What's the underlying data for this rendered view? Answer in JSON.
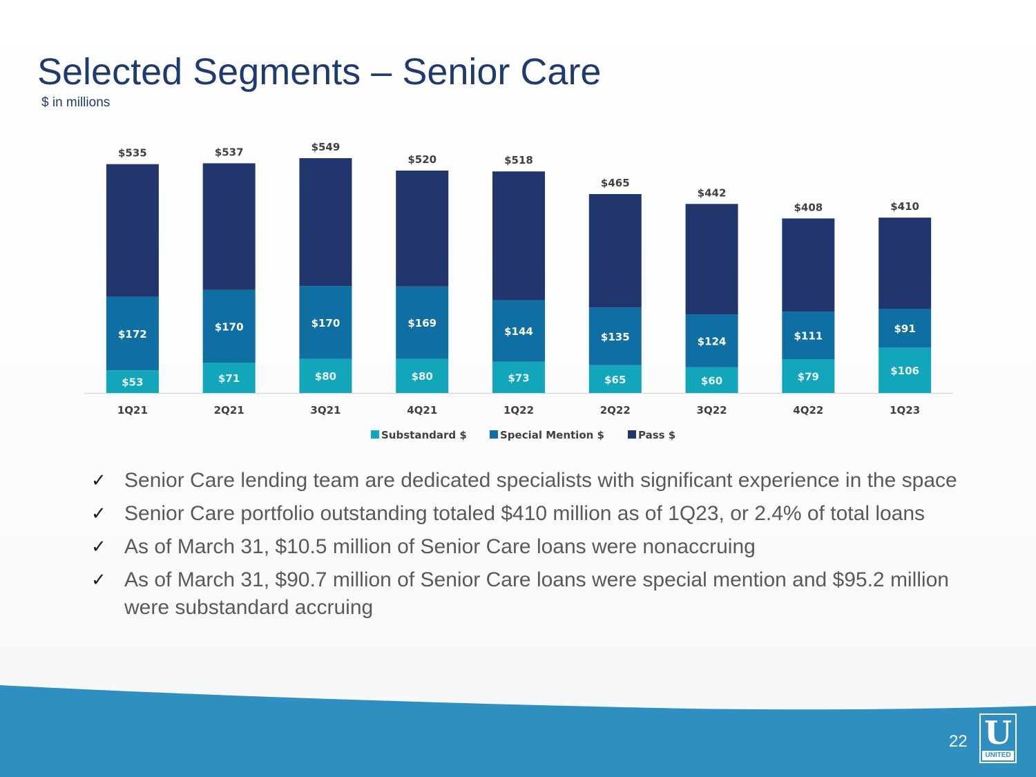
{
  "slide": {
    "title": "Selected Segments – Senior Care",
    "subtitle": "$ in millions",
    "page_number": "22",
    "logo_letter": "U",
    "logo_word": "UNITED"
  },
  "bullets": [
    {
      "text": "Senior Care lending team are dedicated specialists with significant experience in the space"
    },
    {
      "text": "Senior Care portfolio outstanding totaled $410 million as of 1Q23, or 2.4% of total loans"
    },
    {
      "text": "As of March 31, $10.5 million of Senior Care loans were nonaccruing"
    },
    {
      "text": "As of March 31, $90.7 million of Senior Care loans were special mention and $95.2 million were substandard accruing"
    }
  ],
  "check_symbol": "✓",
  "colors": {
    "substandard": "#13a5b9",
    "special_mention": "#0f6fa3",
    "pass": "#21366c",
    "title": "#1f3a6e",
    "wave": "#2e8fc0"
  },
  "chart_data": {
    "type": "bar",
    "stacked": true,
    "title": "",
    "xlabel": "",
    "ylabel": "",
    "categories": [
      "1Q21",
      "2Q21",
      "3Q21",
      "4Q21",
      "1Q22",
      "2Q22",
      "3Q22",
      "4Q22",
      "1Q23"
    ],
    "series": [
      {
        "name": "Substandard $",
        "values": [
          53,
          71,
          80,
          80,
          73,
          65,
          60,
          79,
          106
        ],
        "labels": [
          "$53",
          "$71",
          "$80",
          "$80",
          "$73",
          "$65",
          "$60",
          "$79",
          "$106"
        ]
      },
      {
        "name": "Special Mention $",
        "values": [
          172,
          170,
          170,
          169,
          144,
          135,
          124,
          111,
          91
        ],
        "labels": [
          "$172",
          "$170",
          "$170",
          "$169",
          "$144",
          "$135",
          "$124",
          "$111",
          "$91"
        ]
      },
      {
        "name": "Pass $",
        "values": [
          310,
          296,
          299,
          271,
          301,
          265,
          258,
          218,
          213
        ]
      }
    ],
    "totals": [
      535,
      537,
      549,
      520,
      518,
      465,
      442,
      408,
      410
    ],
    "total_labels": [
      "$535",
      "$537",
      "$549",
      "$520",
      "$518",
      "$465",
      "$442",
      "$408",
      "$410"
    ],
    "ylim": [
      0,
      549
    ],
    "legend_position": "bottom",
    "grid": false
  }
}
